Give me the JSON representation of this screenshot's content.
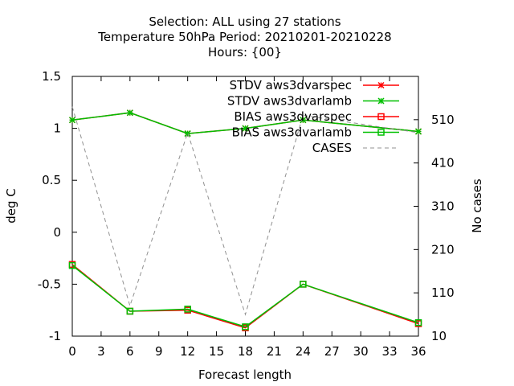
{
  "chart_data": {
    "type": "line",
    "title": [
      "Selection: ALL using    27 stations",
      "Temperature 50hPa   Period: 20210201-20210228",
      "Hours: {00}"
    ],
    "xlabel": "Forecast length",
    "ylabel": "deg C",
    "y2label": "No cases",
    "xlim": [
      0,
      36
    ],
    "ylim": [
      -1,
      1.5
    ],
    "y2lim": [
      10,
      610
    ],
    "xticks": [
      "0",
      "3",
      "6",
      "9",
      "12",
      "15",
      "18",
      "21",
      "24",
      "27",
      "30",
      "33",
      "36"
    ],
    "yticks": [
      "-1",
      "-0.5",
      "0",
      "0.5",
      "1",
      "1.5"
    ],
    "y2ticks": [
      "10",
      "110",
      "210",
      "310",
      "410",
      "510"
    ],
    "legend_position": "top-right",
    "series": [
      {
        "name": "STDV aws3dvarspec",
        "axis": "y1",
        "color": "#ff0000",
        "marker": "x",
        "dash": "solid",
        "x": [
          0,
          6,
          12,
          18,
          24,
          36
        ],
        "values": [
          1.08,
          1.15,
          0.95,
          1.0,
          1.08,
          0.97
        ]
      },
      {
        "name": "STDV aws3dvarlamb",
        "axis": "y1",
        "color": "#00c000",
        "marker": "x",
        "dash": "solid",
        "x": [
          0,
          6,
          12,
          18,
          24,
          36
        ],
        "values": [
          1.08,
          1.15,
          0.95,
          1.0,
          1.08,
          0.97
        ]
      },
      {
        "name": "BIAS aws3dvarspec",
        "axis": "y1",
        "color": "#ff0000",
        "marker": "square",
        "dash": "solid",
        "x": [
          0,
          6,
          12,
          18,
          24,
          36
        ],
        "values": [
          -0.31,
          -0.76,
          -0.75,
          -0.92,
          -0.5,
          -0.88
        ]
      },
      {
        "name": "BIAS aws3dvarlamb",
        "axis": "y1",
        "color": "#00c000",
        "marker": "square",
        "dash": "solid",
        "x": [
          0,
          6,
          12,
          18,
          24,
          36
        ],
        "values": [
          -0.32,
          -0.76,
          -0.74,
          -0.91,
          -0.5,
          -0.87
        ]
      },
      {
        "name": "CASES",
        "axis": "y2",
        "color": "#909090",
        "marker": "none",
        "dash": "dashed",
        "x": [
          0,
          6,
          12,
          18,
          24,
          36
        ],
        "values": [
          540,
          80,
          480,
          60,
          520,
          480
        ]
      }
    ]
  }
}
